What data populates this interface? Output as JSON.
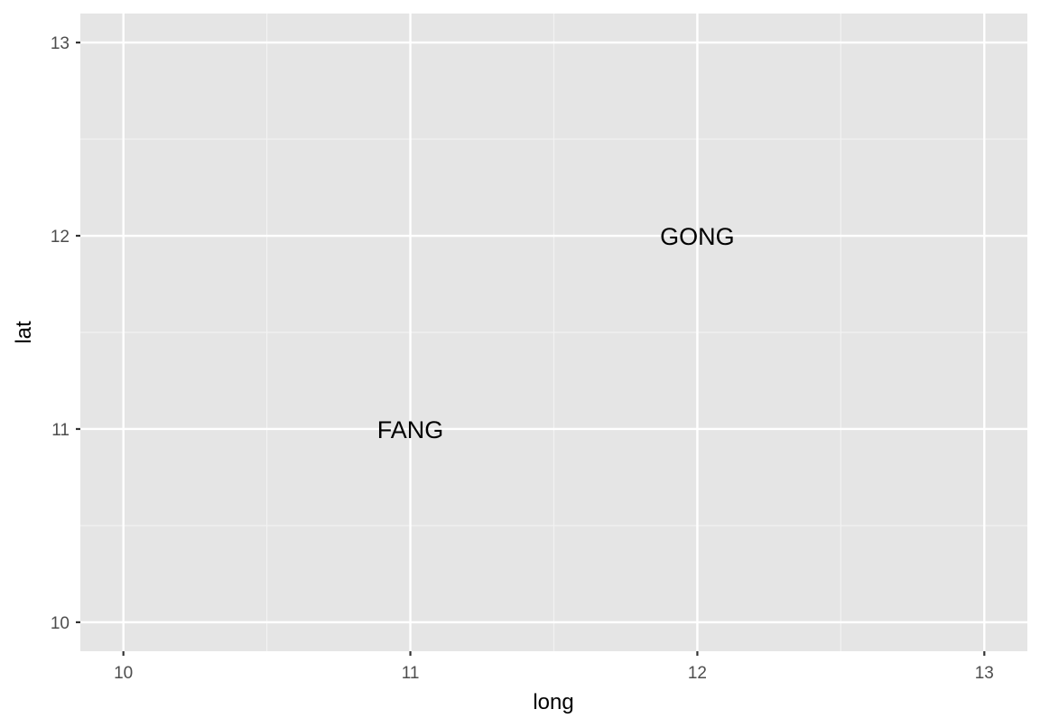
{
  "chart_data": {
    "type": "scatter",
    "geom": "text",
    "title": "",
    "xlabel": "long",
    "ylabel": "lat",
    "xlim": [
      9.85,
      13.15
    ],
    "ylim": [
      9.85,
      13.15
    ],
    "x_ticks": [
      10,
      11,
      12,
      13
    ],
    "y_ticks": [
      10,
      11,
      12,
      13
    ],
    "x_tick_labels": [
      "10",
      "11",
      "12",
      "13"
    ],
    "y_tick_labels": [
      "10",
      "11",
      "12",
      "13"
    ],
    "grid": true,
    "legend": "none",
    "points": [
      {
        "x": 11,
        "y": 11,
        "label": "FANG"
      },
      {
        "x": 12,
        "y": 12,
        "label": "GONG"
      }
    ],
    "colors": {
      "panel_background": "#e5e5e5",
      "grid_major": "#ffffff",
      "grid_minor": "#f2f2f2",
      "tick": "#333333",
      "tick_label": "#4d4d4d",
      "text": "#000000"
    }
  }
}
